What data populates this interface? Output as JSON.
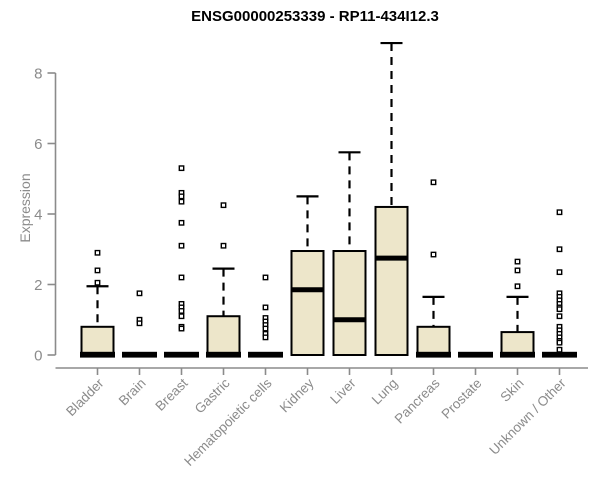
{
  "chart_data": {
    "type": "boxplot",
    "title": "ENSG00000253339 - RP11-434I12.3",
    "ylabel": "Expression",
    "xlabel": "",
    "yticks": [
      0,
      2,
      4,
      6,
      8
    ],
    "ylim": [
      0,
      9
    ],
    "grid": false,
    "legend": "none",
    "categories": [
      "Bladder",
      "Brain",
      "Breast",
      "Gastric",
      "Hematopoietic cells",
      "Kidney",
      "Liver",
      "Lung",
      "Pancreas",
      "Prostate",
      "Skin",
      "Unknown / Other"
    ],
    "boxes": [
      {
        "category": "Bladder",
        "q1": 0,
        "median": 0,
        "q3": 0.8,
        "whisker_low": 0,
        "whisker_high": 1.95,
        "outliers": [
          2.9,
          2.4,
          2.05
        ]
      },
      {
        "category": "Brain",
        "q1": 0,
        "median": 0,
        "q3": 0,
        "whisker_low": 0,
        "whisker_high": 0,
        "outliers": [
          1.75,
          1.0,
          0.9
        ]
      },
      {
        "category": "Breast",
        "q1": 0,
        "median": 0,
        "q3": 0,
        "whisker_low": 0,
        "whisker_high": 0,
        "outliers": [
          5.3,
          4.6,
          4.5,
          4.35,
          3.75,
          3.1,
          2.2,
          1.45,
          1.35,
          1.25,
          1.1,
          0.8,
          0.75
        ]
      },
      {
        "category": "Gastric",
        "q1": 0,
        "median": 0,
        "q3": 1.1,
        "whisker_low": 0,
        "whisker_high": 2.45,
        "outliers": [
          4.25,
          3.1
        ]
      },
      {
        "category": "Hematopoietic cells",
        "q1": 0,
        "median": 0,
        "q3": 0,
        "whisker_low": 0,
        "whisker_high": 0,
        "outliers": [
          2.2,
          1.35,
          1.05,
          0.95,
          0.85,
          0.75,
          0.6,
          0.5
        ]
      },
      {
        "category": "Kidney",
        "q1": 0,
        "median": 1.85,
        "q3": 2.95,
        "whisker_low": 0,
        "whisker_high": 4.5,
        "outliers": []
      },
      {
        "category": "Liver",
        "q1": 0,
        "median": 1.0,
        "q3": 2.95,
        "whisker_low": 0,
        "whisker_high": 5.75,
        "outliers": []
      },
      {
        "category": "Lung",
        "q1": 0,
        "median": 2.75,
        "q3": 4.2,
        "whisker_low": 0,
        "whisker_high": 8.85,
        "outliers": []
      },
      {
        "category": "Pancreas",
        "q1": 0,
        "median": 0,
        "q3": 0.8,
        "whisker_low": 0,
        "whisker_high": 1.65,
        "outliers": [
          4.9,
          2.85
        ]
      },
      {
        "category": "Prostate",
        "q1": 0,
        "median": 0,
        "q3": 0,
        "whisker_low": 0,
        "whisker_high": 0,
        "outliers": []
      },
      {
        "category": "Skin",
        "q1": 0,
        "median": 0,
        "q3": 0.65,
        "whisker_low": 0,
        "whisker_high": 1.65,
        "outliers": [
          2.65,
          2.4,
          1.95
        ]
      },
      {
        "category": "Unknown / Other",
        "q1": 0,
        "median": 0,
        "q3": 0,
        "whisker_low": 0,
        "whisker_high": 0,
        "outliers": [
          4.05,
          3.0,
          2.35,
          1.75,
          1.65,
          1.55,
          1.45,
          1.35,
          1.3,
          1.1,
          0.8,
          0.7,
          0.6,
          0.5,
          0.4,
          0.35,
          0.15
        ]
      }
    ],
    "colors": {
      "box_fill": "#ede6ca",
      "box_stroke": "#000000",
      "axis": "#8b8b8b",
      "title": "#000000",
      "background": "#ffffff"
    }
  }
}
